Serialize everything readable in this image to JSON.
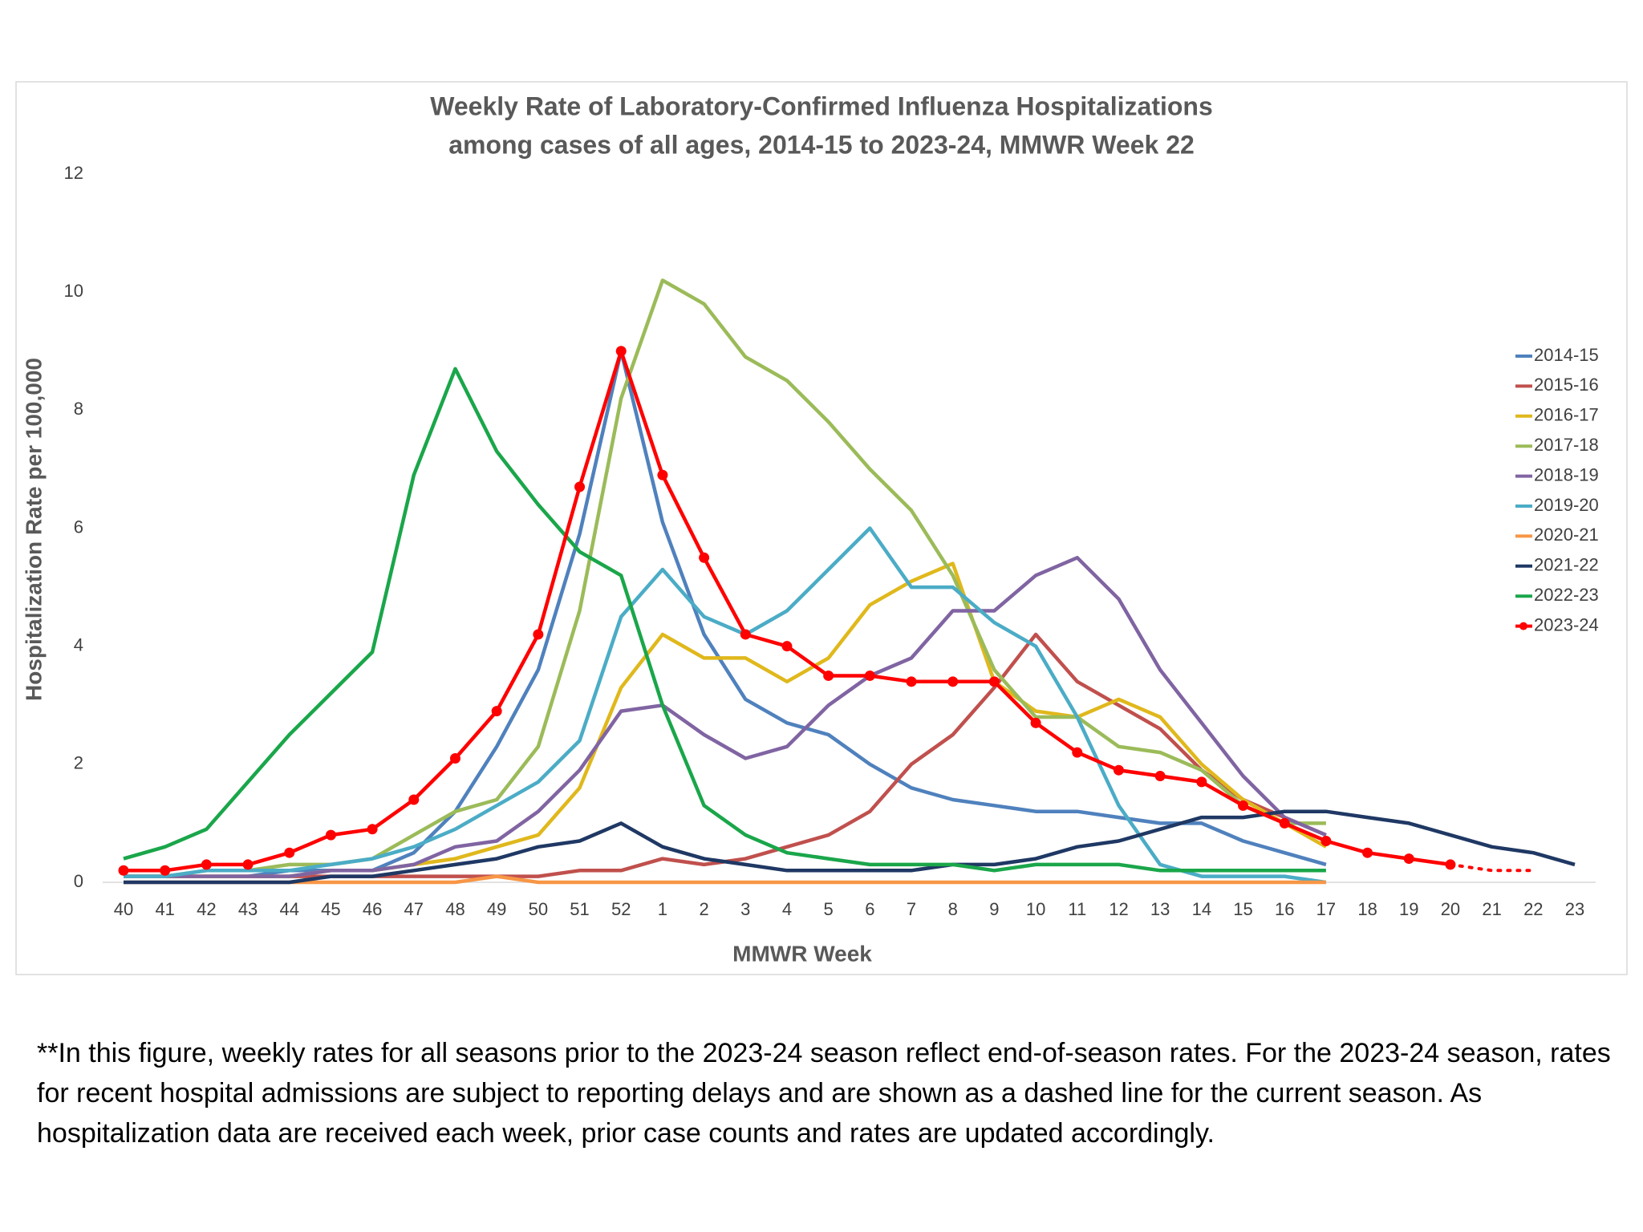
{
  "chart_data": {
    "type": "line",
    "title": [
      "Weekly Rate of Laboratory-Confirmed Influenza Hospitalizations",
      "among cases of all ages, 2014-15 to 2023-24, MMWR Week 22"
    ],
    "x_label": "MMWR Week",
    "y_label": "Hospitalization Rate per 100,000",
    "categories": [
      "40",
      "41",
      "42",
      "43",
      "44",
      "45",
      "46",
      "47",
      "48",
      "49",
      "50",
      "51",
      "52",
      "1",
      "2",
      "3",
      "4",
      "5",
      "6",
      "7",
      "8",
      "9",
      "10",
      "11",
      "12",
      "13",
      "14",
      "15",
      "16",
      "17",
      "18",
      "19",
      "20",
      "21",
      "22",
      "23"
    ],
    "ylim": [
      0,
      12
    ],
    "yticks": [
      0,
      2,
      4,
      6,
      8,
      10,
      12
    ],
    "grid": false,
    "legend": "right",
    "series": [
      {
        "name": "2014-15",
        "color": "#4f81bd",
        "values": [
          0.1,
          0.1,
          0.1,
          0.1,
          0.2,
          0.2,
          0.2,
          0.5,
          1.2,
          2.3,
          3.6,
          5.9,
          9.0,
          6.1,
          4.2,
          3.1,
          2.7,
          2.5,
          2.0,
          1.6,
          1.4,
          1.3,
          1.2,
          1.2,
          1.1,
          1.0,
          1.0,
          0.7,
          0.5,
          0.3,
          null,
          null,
          null,
          null,
          null,
          null
        ]
      },
      {
        "name": "2015-16",
        "color": "#c0504d",
        "values": [
          0.1,
          0.1,
          0.1,
          0.1,
          0.1,
          0.1,
          0.1,
          0.1,
          0.1,
          0.1,
          0.1,
          0.2,
          0.2,
          0.4,
          0.3,
          0.4,
          0.6,
          0.8,
          1.2,
          2.0,
          2.5,
          3.3,
          4.2,
          3.4,
          3.0,
          2.6,
          1.9,
          1.4,
          1.1,
          0.8,
          null,
          null,
          null,
          null,
          null,
          null
        ]
      },
      {
        "name": "2016-17",
        "color": "#e0b81c",
        "values": [
          0.1,
          0.1,
          0.1,
          0.1,
          0.1,
          0.2,
          0.2,
          0.3,
          0.4,
          0.6,
          0.8,
          1.6,
          3.3,
          4.2,
          3.8,
          3.8,
          3.4,
          3.8,
          4.7,
          5.1,
          5.4,
          3.4,
          2.9,
          2.8,
          3.1,
          2.8,
          2.0,
          1.4,
          1.0,
          0.6,
          null,
          null,
          null,
          null,
          null,
          null
        ]
      },
      {
        "name": "2017-18",
        "color": "#9bbb59",
        "values": [
          0.1,
          0.1,
          0.2,
          0.2,
          0.3,
          0.3,
          0.4,
          0.8,
          1.2,
          1.4,
          2.3,
          4.6,
          8.2,
          10.2,
          9.8,
          8.9,
          8.5,
          7.8,
          7.0,
          6.3,
          5.2,
          3.6,
          2.8,
          2.8,
          2.3,
          2.2,
          1.9,
          1.3,
          1.0,
          1.0,
          null,
          null,
          null,
          null,
          null,
          null
        ]
      },
      {
        "name": "2018-19",
        "color": "#8064a2",
        "values": [
          0.1,
          0.1,
          0.1,
          0.1,
          0.1,
          0.2,
          0.2,
          0.3,
          0.6,
          0.7,
          1.2,
          1.9,
          2.9,
          3.0,
          2.5,
          2.1,
          2.3,
          3.0,
          3.5,
          3.8,
          4.6,
          4.6,
          5.2,
          5.5,
          4.8,
          3.6,
          2.7,
          1.8,
          1.1,
          0.8,
          null,
          null,
          null,
          null,
          null,
          null
        ]
      },
      {
        "name": "2019-20",
        "color": "#4bacc6",
        "values": [
          0.1,
          0.1,
          0.2,
          0.2,
          0.2,
          0.3,
          0.4,
          0.6,
          0.9,
          1.3,
          1.7,
          2.4,
          4.5,
          5.3,
          4.5,
          4.2,
          4.6,
          5.3,
          6.0,
          5.0,
          5.0,
          4.4,
          4.0,
          2.8,
          1.3,
          0.3,
          0.1,
          0.1,
          0.1,
          0.0,
          null,
          null,
          null,
          null,
          null,
          null
        ]
      },
      {
        "name": "2020-21",
        "color": "#f79646",
        "values": [
          0.0,
          0.0,
          0.0,
          0.0,
          0.0,
          0.0,
          0.0,
          0.0,
          0.0,
          0.1,
          0.0,
          0.0,
          0.0,
          0.0,
          0.0,
          0.0,
          0.0,
          0.0,
          0.0,
          0.0,
          0.0,
          0.0,
          0.0,
          0.0,
          0.0,
          0.0,
          0.0,
          0.0,
          0.0,
          0.0,
          null,
          null,
          null,
          null,
          null,
          null
        ]
      },
      {
        "name": "2021-22",
        "color": "#1f3864",
        "values": [
          0.0,
          0.0,
          0.0,
          0.0,
          0.0,
          0.1,
          0.1,
          0.2,
          0.3,
          0.4,
          0.6,
          0.7,
          1.0,
          0.6,
          0.4,
          0.3,
          0.2,
          0.2,
          0.2,
          0.2,
          0.3,
          0.3,
          0.4,
          0.6,
          0.7,
          0.9,
          1.1,
          1.1,
          1.2,
          1.2,
          1.1,
          1.0,
          0.8,
          0.6,
          0.5,
          0.3
        ]
      },
      {
        "name": "2022-23",
        "color": "#1aa64a",
        "values": [
          0.4,
          0.6,
          0.9,
          1.7,
          2.5,
          3.2,
          3.9,
          6.9,
          8.7,
          7.3,
          6.4,
          5.6,
          5.2,
          3.0,
          1.3,
          0.8,
          0.5,
          0.4,
          0.3,
          0.3,
          0.3,
          0.2,
          0.3,
          0.3,
          0.3,
          0.2,
          0.2,
          0.2,
          0.2,
          0.2,
          null,
          null,
          null,
          null,
          null,
          null
        ]
      },
      {
        "name": "2023-24",
        "color": "#ff0000",
        "markers": true,
        "dashed_after": "20",
        "values": [
          0.2,
          0.2,
          0.3,
          0.3,
          0.5,
          0.8,
          0.9,
          1.4,
          2.1,
          2.9,
          4.2,
          6.7,
          9.0,
          6.9,
          5.5,
          4.2,
          4.0,
          3.5,
          3.5,
          3.4,
          3.4,
          3.4,
          2.7,
          2.2,
          1.9,
          1.8,
          1.7,
          1.3,
          1.0,
          0.7,
          0.5,
          0.4,
          0.3,
          0.2,
          0.2,
          null
        ]
      }
    ]
  },
  "footnote": "**In this figure, weekly rates for all seasons prior to the 2023-24 season reflect end-of-season rates. For the 2023-24 season, rates for recent hospital admissions are subject to reporting delays and are shown as a dashed line for the current season. As hospitalization data are received each week, prior case counts and rates are updated accordingly."
}
